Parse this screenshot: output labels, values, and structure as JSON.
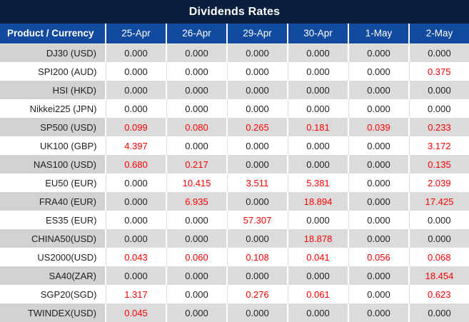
{
  "title": "Dividends Rates",
  "colors": {
    "title_bg": "#0A1F3E",
    "header_bg": "#114A9F",
    "stripe_row": "#DBDBDB",
    "stripe_product": "#D2D2D2",
    "value_text": "#1F1F1F",
    "positive_value_text": "#FF0000",
    "header_text": "#FFFFFF"
  },
  "chart_data": {
    "type": "table",
    "title": "Dividends Rates",
    "columns": [
      "Product / Currency",
      "25-Apr",
      "26-Apr",
      "29-Apr",
      "30-Apr",
      "1-May",
      "2-May"
    ],
    "value_color_rule": "non-zero values rendered in red",
    "rows": [
      {
        "product": "DJ30 (USD)",
        "values": [
          "0.000",
          "0.000",
          "0.000",
          "0.000",
          "0.000",
          "0.000"
        ]
      },
      {
        "product": "SPI200 (AUD)",
        "values": [
          "0.000",
          "0.000",
          "0.000",
          "0.000",
          "0.000",
          "0.375"
        ]
      },
      {
        "product": "HSI (HKD)",
        "values": [
          "0.000",
          "0.000",
          "0.000",
          "0.000",
          "0.000",
          "0.000"
        ]
      },
      {
        "product": "Nikkei225 (JPN)",
        "values": [
          "0.000",
          "0.000",
          "0.000",
          "0.000",
          "0.000",
          "0.000"
        ]
      },
      {
        "product": "SP500 (USD)",
        "values": [
          "0.099",
          "0.080",
          "0.265",
          "0.181",
          "0.039",
          "0.233"
        ]
      },
      {
        "product": "UK100 (GBP)",
        "values": [
          "4.397",
          "0.000",
          "0.000",
          "0.000",
          "0.000",
          "3.172"
        ]
      },
      {
        "product": "NAS100 (USD)",
        "values": [
          "0.680",
          "0.217",
          "0.000",
          "0.000",
          "0.000",
          "0.135"
        ]
      },
      {
        "product": "EU50 (EUR)",
        "values": [
          "0.000",
          "10.415",
          "3.511",
          "5.381",
          "0.000",
          "2.039"
        ]
      },
      {
        "product": "FRA40 (EUR)",
        "values": [
          "0.000",
          "6.935",
          "0.000",
          "18.894",
          "0.000",
          "17.425"
        ]
      },
      {
        "product": "ES35 (EUR)",
        "values": [
          "0.000",
          "0.000",
          "57.307",
          "0.000",
          "0.000",
          "0.000"
        ]
      },
      {
        "product": "CHINA50(USD)",
        "values": [
          "0.000",
          "0.000",
          "0.000",
          "18.878",
          "0.000",
          "0.000"
        ]
      },
      {
        "product": "US2000(USD)",
        "values": [
          "0.043",
          "0.060",
          "0.108",
          "0.041",
          "0.056",
          "0.068"
        ]
      },
      {
        "product": "SA40(ZAR)",
        "values": [
          "0.000",
          "0.000",
          "0.000",
          "0.000",
          "0.000",
          "18.454"
        ]
      },
      {
        "product": "SGP20(SGD)",
        "values": [
          "1.317",
          "0.000",
          "0.276",
          "0.061",
          "0.000",
          "0.623"
        ]
      },
      {
        "product": "TWINDEX(USD)",
        "values": [
          "0.045",
          "0.000",
          "0.000",
          "0.000",
          "0.000",
          "0.000"
        ]
      }
    ]
  }
}
